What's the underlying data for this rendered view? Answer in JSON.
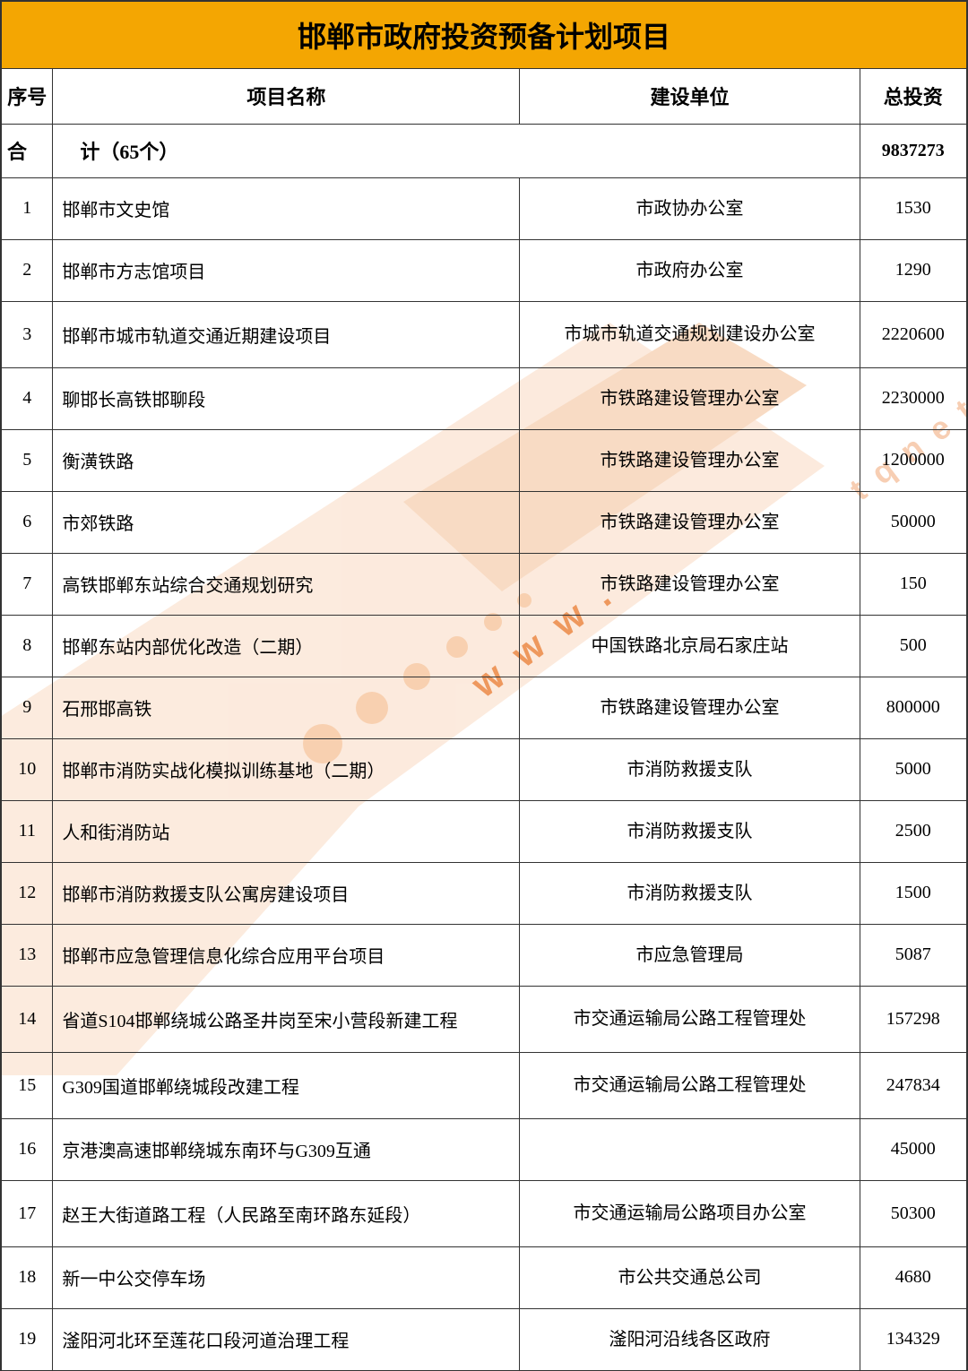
{
  "title": "邯郸市政府投资预备计划项目",
  "headers": {
    "seq": "序号",
    "name": "项目名称",
    "unit": "建设单位",
    "invest": "总投资"
  },
  "summary": {
    "he": "合",
    "ji": "计（65个）",
    "total": "9837273"
  },
  "rows": [
    {
      "seq": "1",
      "name": "邯郸市文史馆",
      "unit": "市政协办公室",
      "invest": "1530"
    },
    {
      "seq": "2",
      "name": "邯郸市方志馆项目",
      "unit": "市政府办公室",
      "invest": "1290"
    },
    {
      "seq": "3",
      "name": "邯郸市城市轨道交通近期建设项目",
      "unit": "市城市轨道交通规划建设办公室",
      "invest": "2220600"
    },
    {
      "seq": "4",
      "name": "聊邯长高铁邯聊段",
      "unit": "市铁路建设管理办公室",
      "invest": "2230000"
    },
    {
      "seq": "5",
      "name": "衡潢铁路",
      "unit": "市铁路建设管理办公室",
      "invest": "1200000"
    },
    {
      "seq": "6",
      "name": "市郊铁路",
      "unit": "市铁路建设管理办公室",
      "invest": "50000"
    },
    {
      "seq": "7",
      "name": "高铁邯郸东站综合交通规划研究",
      "unit": "市铁路建设管理办公室",
      "invest": "150"
    },
    {
      "seq": "8",
      "name": "邯郸东站内部优化改造（二期）",
      "unit": "中国铁路北京局石家庄站",
      "invest": "500"
    },
    {
      "seq": "9",
      "name": "石邢邯高铁",
      "unit": "市铁路建设管理办公室",
      "invest": "800000"
    },
    {
      "seq": "10",
      "name": "邯郸市消防实战化模拟训练基地（二期）",
      "unit": "市消防救援支队",
      "invest": "5000"
    },
    {
      "seq": "11",
      "name": "人和街消防站",
      "unit": "市消防救援支队",
      "invest": "2500"
    },
    {
      "seq": "12",
      "name": "邯郸市消防救援支队公寓房建设项目",
      "unit": "市消防救援支队",
      "invest": "1500"
    },
    {
      "seq": "13",
      "name": "邯郸市应急管理信息化综合应用平台项目",
      "unit": "市应急管理局",
      "invest": "5087"
    },
    {
      "seq": "14",
      "name": "省道S104邯郸绕城公路圣井岗至宋小营段新建工程",
      "unit": "市交通运输局公路工程管理处",
      "invest": "157298"
    },
    {
      "seq": "15",
      "name": "G309国道邯郸绕城段改建工程",
      "unit": "市交通运输局公路工程管理处",
      "invest": "247834"
    },
    {
      "seq": "16",
      "name": "京港澳高速邯郸绕城东南环与G309互通",
      "unit": "",
      "invest": "45000"
    },
    {
      "seq": "17",
      "name": "赵王大街道路工程（人民路至南环路东延段）",
      "unit": "市交通运输局公路项目办公室",
      "invest": "50300"
    },
    {
      "seq": "18",
      "name": "新一中公交停车场",
      "unit": "市公共交通总公司",
      "invest": "4680"
    },
    {
      "seq": "19",
      "name": "滏阳河北环至莲花口段河道治理工程",
      "unit": "滏阳河沿线各区政府",
      "invest": "134329"
    }
  ],
  "watermark": {
    "text_color": "#f08838",
    "text_opacity": 0.55,
    "shape_color": "#f9d8bf",
    "shape_opacity": 0.7
  }
}
